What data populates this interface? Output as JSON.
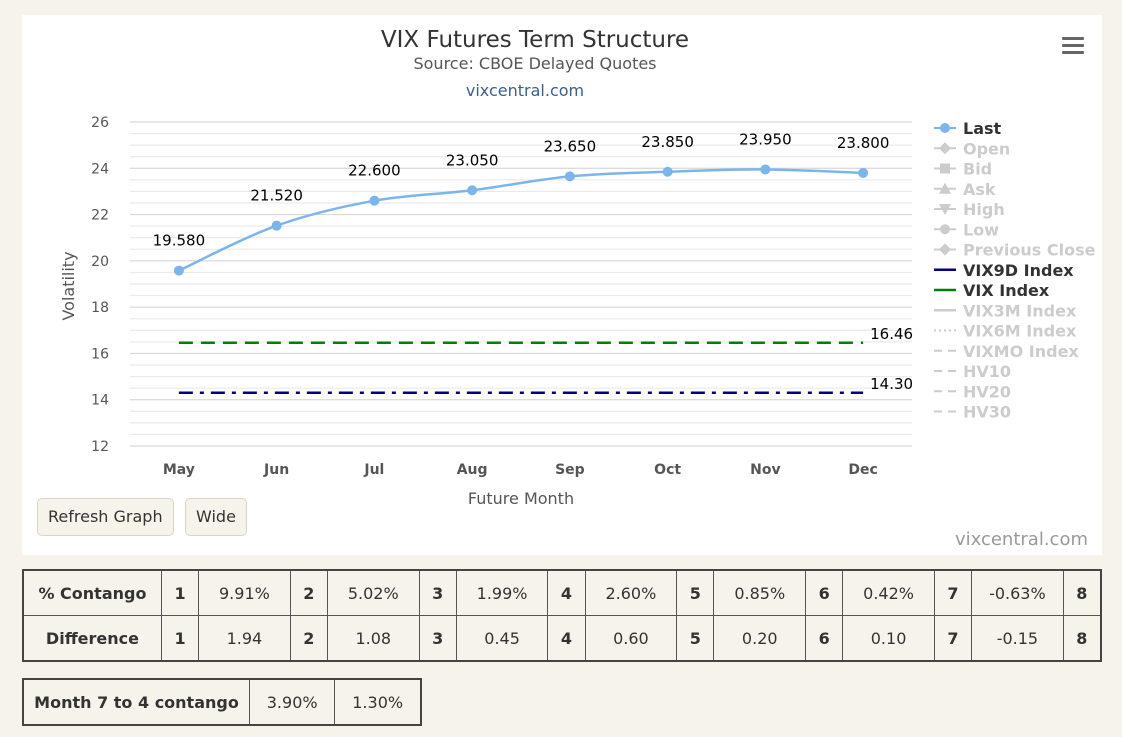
{
  "chart_data": {
    "type": "line",
    "title": "VIX Futures Term Structure",
    "subtitle": "Source: CBOE Delayed Quotes",
    "link": "vixcentral.com",
    "xlabel": "Future Month",
    "ylabel": "Volatility",
    "categories": [
      "May",
      "Jun",
      "Jul",
      "Aug",
      "Sep",
      "Oct",
      "Nov",
      "Dec"
    ],
    "ylim": [
      12,
      26
    ],
    "yticks": [
      "12",
      "14",
      "16",
      "18",
      "20",
      "22",
      "24",
      "26"
    ],
    "grid": true,
    "series": [
      {
        "name": "Last",
        "values": [
          19.58,
          21.52,
          22.6,
          23.05,
          23.65,
          23.85,
          23.95,
          23.8
        ],
        "labels": [
          "19.580",
          "21.520",
          "22.600",
          "23.050",
          "23.650",
          "23.850",
          "23.950",
          "23.800"
        ],
        "color": "#7cb5ec"
      },
      {
        "name": "VIX9D Index",
        "value": 14.3,
        "label": "14.30",
        "color": "#000080",
        "dash": "dash-dot"
      },
      {
        "name": "VIX Index",
        "value": 16.46,
        "label": "16.46",
        "color": "#008000",
        "dash": "dash"
      }
    ],
    "legend": {
      "position": "right",
      "items": [
        {
          "name": "Last",
          "active": true,
          "marker": "circle",
          "color": "#7cb5ec"
        },
        {
          "name": "Open",
          "active": false,
          "marker": "diamond"
        },
        {
          "name": "Bid",
          "active": false,
          "marker": "square"
        },
        {
          "name": "Ask",
          "active": false,
          "marker": "triangle"
        },
        {
          "name": "High",
          "active": false,
          "marker": "triangle-down"
        },
        {
          "name": "Low",
          "active": false,
          "marker": "circle"
        },
        {
          "name": "Previous Close",
          "active": false,
          "marker": "diamond"
        },
        {
          "name": "VIX9D Index",
          "active": true,
          "marker": "line",
          "color": "#000080"
        },
        {
          "name": "VIX Index",
          "active": true,
          "marker": "line",
          "color": "#008000"
        },
        {
          "name": "VIX3M Index",
          "active": false,
          "marker": "line"
        },
        {
          "name": "VIX6M Index",
          "active": false,
          "marker": "dotted"
        },
        {
          "name": "VIXMO Index",
          "active": false,
          "marker": "dashed"
        },
        {
          "name": "HV10",
          "active": false,
          "marker": "dashed"
        },
        {
          "name": "HV20",
          "active": false,
          "marker": "dashed"
        },
        {
          "name": "HV30",
          "active": false,
          "marker": "dashed"
        }
      ]
    }
  },
  "controls": {
    "refresh_label": "Refresh Graph",
    "wide_label": "Wide",
    "credit": "vixcentral.com"
  },
  "contango_table": {
    "rows": [
      {
        "label": "% Contango",
        "cells": [
          [
            "1",
            "9.91%"
          ],
          [
            "2",
            "5.02%"
          ],
          [
            "3",
            "1.99%"
          ],
          [
            "4",
            "2.60%"
          ],
          [
            "5",
            "0.85%"
          ],
          [
            "6",
            "0.42%"
          ],
          [
            "7",
            "-0.63%"
          ],
          [
            "8",
            ""
          ]
        ]
      },
      {
        "label": "Difference",
        "cells": [
          [
            "1",
            "1.94"
          ],
          [
            "2",
            "1.08"
          ],
          [
            "3",
            "0.45"
          ],
          [
            "4",
            "0.60"
          ],
          [
            "5",
            "0.20"
          ],
          [
            "6",
            "0.10"
          ],
          [
            "7",
            "-0.15"
          ],
          [
            "8",
            ""
          ]
        ]
      }
    ]
  },
  "month_table": {
    "label": "Month 7 to 4 contango",
    "values": [
      "3.90%",
      "1.30%"
    ]
  }
}
